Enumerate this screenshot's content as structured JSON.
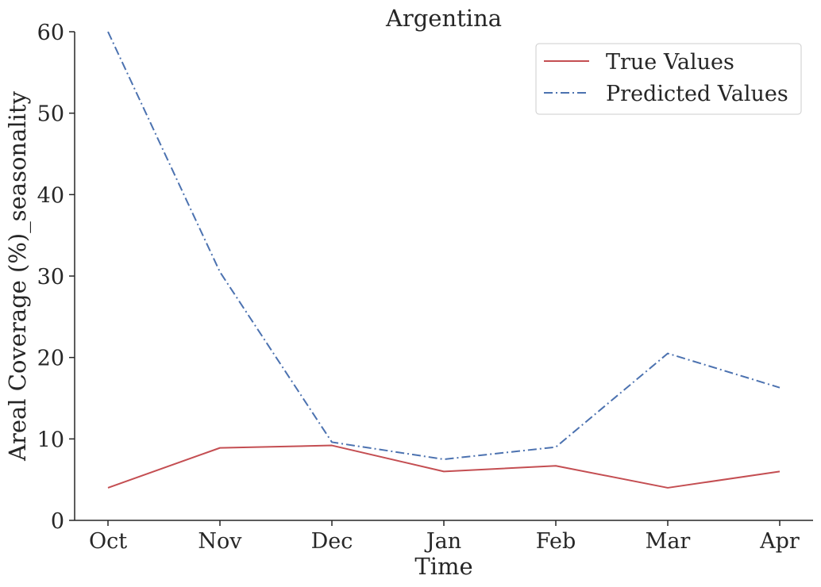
{
  "chart_data": {
    "type": "line",
    "title": "Argentina",
    "xlabel": "Time",
    "ylabel": "Areal Coverage (%)_seasonality",
    "categories": [
      "Oct",
      "Nov",
      "Dec",
      "Jan",
      "Feb",
      "Mar",
      "Apr"
    ],
    "ylim": [
      0,
      60
    ],
    "yticks": [
      0,
      10,
      20,
      30,
      40,
      50,
      60
    ],
    "grid": false,
    "legend": "top-right",
    "series": [
      {
        "name": "True Values",
        "color": "#c44e52",
        "style": "solid",
        "values": [
          4.0,
          8.9,
          9.2,
          6.0,
          6.7,
          4.0,
          6.0
        ]
      },
      {
        "name": "Predicted Values",
        "color": "#4c72b0",
        "style": "dashdot",
        "values": [
          60.0,
          30.5,
          9.6,
          7.5,
          9.0,
          20.5,
          16.3
        ]
      }
    ]
  }
}
